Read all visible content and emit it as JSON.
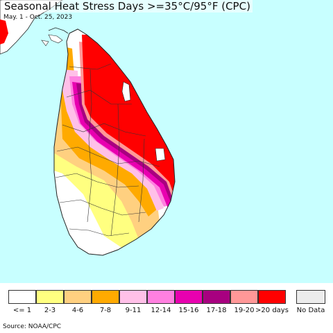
{
  "title": "Seasonal Heat Stress Days >=35°C/95°F (CPC)",
  "subtitle": "May. 1 - Oct. 25, 2023",
  "source": "Source: NOAA/CPC",
  "colors": {
    "ocean": "#c8ffff",
    "land_default": "#ffffff",
    "outline": "#222222"
  },
  "legend": [
    {
      "label": "<= 1",
      "color": "#ffffff"
    },
    {
      "label": "2-3",
      "color": "#ffff80"
    },
    {
      "label": "4-6",
      "color": "#ffd080"
    },
    {
      "label": "7-8",
      "color": "#ffaa00"
    },
    {
      "label": "9-11",
      "color": "#ffc0e8"
    },
    {
      "label": "12-14",
      "color": "#ff80e0"
    },
    {
      "label": "15-16",
      "color": "#e800b0"
    },
    {
      "label": "17-18",
      "color": "#a80080"
    },
    {
      "label": "19-20",
      "color": "#ff9898"
    },
    {
      "label": ">20 days",
      "color": "#ff0000"
    }
  ],
  "no_data": {
    "label": "No Data",
    "color": "#ececec"
  }
}
